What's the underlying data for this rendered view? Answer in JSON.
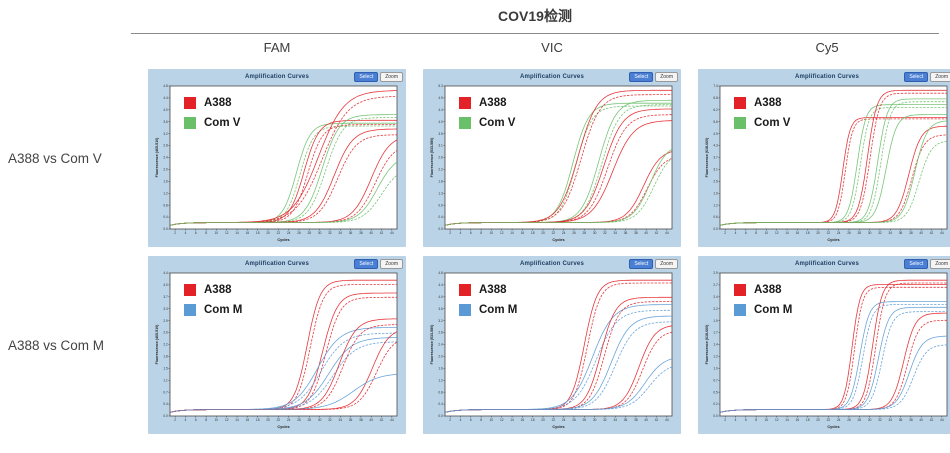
{
  "header": {
    "title": "COV19检测"
  },
  "columns": [
    "FAM",
    "VIC",
    "Cy5"
  ],
  "rows": [
    "A388 vs Com V",
    "A388 vs Com M"
  ],
  "panel_controls": {
    "select_label": "Select",
    "zoom_label": "Zoom"
  },
  "colors": {
    "red": "#e32228",
    "green": "#6abf69",
    "blue": "#5b9bd5",
    "panel_bg": "#bad3e6",
    "plot_border": "#4a4a4a"
  },
  "series_format": [
    "color",
    "ct_midpoint_cycle",
    "plateau_fraction",
    "slope",
    "dashed"
  ],
  "chart_data": [
    {
      "type": "line",
      "row_label": "A388 vs Com V",
      "channel": "FAM",
      "title": "Amplification Curves",
      "xlabel": "Cycles",
      "ylabel": "Fluorescence (465-510)",
      "xlim": [
        1,
        45
      ],
      "x_tick_step": 2,
      "ylim": [
        0.0,
        4.8
      ],
      "baseline": 0.045,
      "legend": [
        {
          "label": "A388",
          "color": "#e32228"
        },
        {
          "label": "Com V",
          "color": "#6abf69"
        }
      ],
      "series": [
        [
          "#6abf69",
          25.5,
          0.74,
          0.75,
          0
        ],
        [
          "#6abf69",
          26.2,
          0.72,
          0.75,
          1
        ],
        [
          "#e32228",
          27.0,
          0.76,
          0.7,
          0
        ],
        [
          "#e32228",
          27.7,
          0.73,
          0.7,
          1
        ],
        [
          "#e32228",
          29.8,
          0.97,
          0.4,
          0
        ],
        [
          "#e32228",
          30.5,
          0.93,
          0.4,
          1
        ],
        [
          "#6abf69",
          30.5,
          0.8,
          0.6,
          0
        ],
        [
          "#6abf69",
          31.2,
          0.78,
          0.6,
          1
        ],
        [
          "#e32228",
          32.8,
          0.7,
          0.55,
          0
        ],
        [
          "#e32228",
          33.5,
          0.66,
          0.55,
          1
        ],
        [
          "#e32228",
          40.0,
          0.66,
          0.55,
          0
        ],
        [
          "#e32228",
          40.8,
          0.6,
          0.55,
          1
        ],
        [
          "#6abf69",
          41.2,
          0.52,
          0.55,
          0
        ],
        [
          "#6abf69",
          42.0,
          0.44,
          0.55,
          1
        ]
      ]
    },
    {
      "type": "line",
      "row_label": "A388 vs Com V",
      "channel": "VIC",
      "title": "Amplification Curves",
      "xlabel": "Cycles",
      "ylabel": "Fluorescence (533-580)",
      "xlim": [
        1,
        45
      ],
      "x_tick_step": 2,
      "ylim": [
        0.0,
        5.3
      ],
      "baseline": 0.045,
      "legend": [
        {
          "label": "A388",
          "color": "#e32228"
        },
        {
          "label": "Com V",
          "color": "#6abf69"
        }
      ],
      "series": [
        [
          "#6abf69",
          25.8,
          0.88,
          0.65,
          0
        ],
        [
          "#6abf69",
          26.4,
          0.86,
          0.65,
          1
        ],
        [
          "#e32228",
          26.8,
          0.97,
          0.55,
          0
        ],
        [
          "#e32228",
          27.4,
          0.94,
          0.55,
          1
        ],
        [
          "#6abf69",
          30.8,
          0.9,
          0.6,
          0
        ],
        [
          "#6abf69",
          31.4,
          0.87,
          0.6,
          1
        ],
        [
          "#e32228",
          31.8,
          0.84,
          0.55,
          0
        ],
        [
          "#e32228",
          32.5,
          0.8,
          0.55,
          1
        ],
        [
          "#e32228",
          33.5,
          0.76,
          0.5,
          0
        ],
        [
          "#e32228",
          39.5,
          0.56,
          0.6,
          0
        ],
        [
          "#e32228",
          40.2,
          0.52,
          0.6,
          1
        ],
        [
          "#6abf69",
          40.8,
          0.6,
          0.6,
          0
        ],
        [
          "#6abf69",
          41.5,
          0.55,
          0.6,
          1
        ]
      ]
    },
    {
      "type": "line",
      "row_label": "A388 vs Com V",
      "channel": "Cy5",
      "title": "Amplification Curves",
      "xlabel": "Cycles",
      "ylabel": "Fluorescence (618-660)",
      "xlim": [
        1,
        45
      ],
      "x_tick_step": 2,
      "ylim": [
        0.0,
        7.4
      ],
      "baseline": 0.045,
      "legend": [
        {
          "label": "A388",
          "color": "#e32228"
        },
        {
          "label": "Com V",
          "color": "#6abf69"
        }
      ],
      "series": [
        [
          "#e32228",
          24.8,
          0.78,
          1.4,
          0
        ],
        [
          "#e32228",
          25.3,
          0.77,
          1.4,
          1
        ],
        [
          "#6abf69",
          27.6,
          0.87,
          1.2,
          0
        ],
        [
          "#6abf69",
          28.2,
          0.85,
          1.2,
          1
        ],
        [
          "#e32228",
          29.6,
          0.97,
          1.1,
          0
        ],
        [
          "#e32228",
          30.1,
          0.95,
          1.1,
          1
        ],
        [
          "#6abf69",
          31.6,
          0.91,
          1.1,
          0
        ],
        [
          "#6abf69",
          32.2,
          0.89,
          1.1,
          1
        ],
        [
          "#6abf69",
          33.2,
          0.8,
          1.0,
          0
        ],
        [
          "#e32228",
          37.6,
          0.72,
          0.85,
          0
        ],
        [
          "#e32228",
          38.2,
          0.66,
          0.85,
          1
        ],
        [
          "#6abf69",
          38.8,
          0.76,
          0.85,
          0
        ],
        [
          "#6abf69",
          39.6,
          0.62,
          0.85,
          1
        ]
      ]
    },
    {
      "type": "line",
      "row_label": "A388 vs Com M",
      "channel": "FAM",
      "title": "Amplification Curves",
      "xlabel": "Cycles",
      "ylabel": "Fluorescence (465-510)",
      "xlim": [
        1,
        45
      ],
      "x_tick_step": 2,
      "ylim": [
        0.0,
        4.4
      ],
      "baseline": 0.045,
      "legend": [
        {
          "label": "A388",
          "color": "#e32228"
        },
        {
          "label": "Com M",
          "color": "#5b9bd5"
        }
      ],
      "series": [
        [
          "#e32228",
          27.6,
          0.95,
          0.8,
          0
        ],
        [
          "#e32228",
          28.2,
          0.92,
          0.8,
          1
        ],
        [
          "#e32228",
          30.6,
          0.86,
          0.7,
          0
        ],
        [
          "#e32228",
          31.2,
          0.83,
          0.7,
          1
        ],
        [
          "#5b9bd5",
          29.6,
          0.62,
          0.45,
          0
        ],
        [
          "#5b9bd5",
          30.3,
          0.58,
          0.45,
          1
        ],
        [
          "#5b9bd5",
          31.8,
          0.55,
          0.45,
          0
        ],
        [
          "#5b9bd5",
          32.6,
          0.52,
          0.45,
          1
        ],
        [
          "#e32228",
          33.8,
          0.68,
          0.6,
          0
        ],
        [
          "#e32228",
          34.5,
          0.64,
          0.6,
          1
        ],
        [
          "#e32228",
          40.2,
          0.62,
          0.6,
          0
        ],
        [
          "#e32228",
          41.0,
          0.56,
          0.6,
          1
        ],
        [
          "#5b9bd5",
          36.5,
          0.3,
          0.4,
          0
        ]
      ]
    },
    {
      "type": "line",
      "row_label": "A388 vs Com M",
      "channel": "VIC",
      "title": "Amplification Curves",
      "xlabel": "Cycles",
      "ylabel": "Fluorescence (533-580)",
      "xlim": [
        1,
        45
      ],
      "x_tick_step": 2,
      "ylim": [
        0.0,
        4.8
      ],
      "baseline": 0.045,
      "legend": [
        {
          "label": "A388",
          "color": "#e32228"
        },
        {
          "label": "Com M",
          "color": "#5b9bd5"
        }
      ],
      "series": [
        [
          "#e32228",
          28.0,
          0.95,
          0.8,
          0
        ],
        [
          "#e32228",
          28.6,
          0.93,
          0.8,
          1
        ],
        [
          "#5b9bd5",
          29.6,
          0.78,
          0.5,
          0
        ],
        [
          "#5b9bd5",
          30.3,
          0.74,
          0.5,
          1
        ],
        [
          "#e32228",
          31.2,
          0.83,
          0.7,
          0
        ],
        [
          "#e32228",
          31.9,
          0.8,
          0.7,
          1
        ],
        [
          "#5b9bd5",
          33.2,
          0.7,
          0.55,
          0
        ],
        [
          "#5b9bd5",
          34.0,
          0.66,
          0.55,
          1
        ],
        [
          "#e32228",
          38.6,
          0.64,
          0.65,
          0
        ],
        [
          "#e32228",
          39.3,
          0.6,
          0.65,
          1
        ],
        [
          "#5b9bd5",
          39.8,
          0.42,
          0.55,
          0
        ],
        [
          "#5b9bd5",
          40.6,
          0.37,
          0.55,
          1
        ]
      ]
    },
    {
      "type": "line",
      "row_label": "A388 vs Com M",
      "channel": "Cy5",
      "title": "Amplification Curves",
      "xlabel": "Cycles",
      "ylabel": "Fluorescence (618-660)",
      "xlim": [
        1,
        45
      ],
      "x_tick_step": 2,
      "ylim": [
        0.0,
        2.9
      ],
      "baseline": 0.045,
      "legend": [
        {
          "label": "A388",
          "color": "#e32228"
        },
        {
          "label": "Com M",
          "color": "#5b9bd5"
        }
      ],
      "series": [
        [
          "#e32228",
          26.6,
          0.92,
          1.3,
          0
        ],
        [
          "#e32228",
          27.1,
          0.9,
          1.3,
          1
        ],
        [
          "#5b9bd5",
          28.1,
          0.8,
          1.1,
          0
        ],
        [
          "#5b9bd5",
          28.7,
          0.78,
          1.1,
          1
        ],
        [
          "#e32228",
          30.6,
          0.95,
          1.1,
          0
        ],
        [
          "#e32228",
          31.2,
          0.93,
          1.1,
          1
        ],
        [
          "#5b9bd5",
          31.7,
          0.76,
          1.0,
          0
        ],
        [
          "#5b9bd5",
          32.4,
          0.73,
          1.0,
          1
        ],
        [
          "#e32228",
          36.6,
          0.72,
          0.9,
          0
        ],
        [
          "#e32228",
          37.3,
          0.67,
          0.9,
          1
        ],
        [
          "#5b9bd5",
          37.7,
          0.56,
          0.8,
          0
        ],
        [
          "#5b9bd5",
          38.5,
          0.5,
          0.8,
          1
        ]
      ]
    }
  ]
}
